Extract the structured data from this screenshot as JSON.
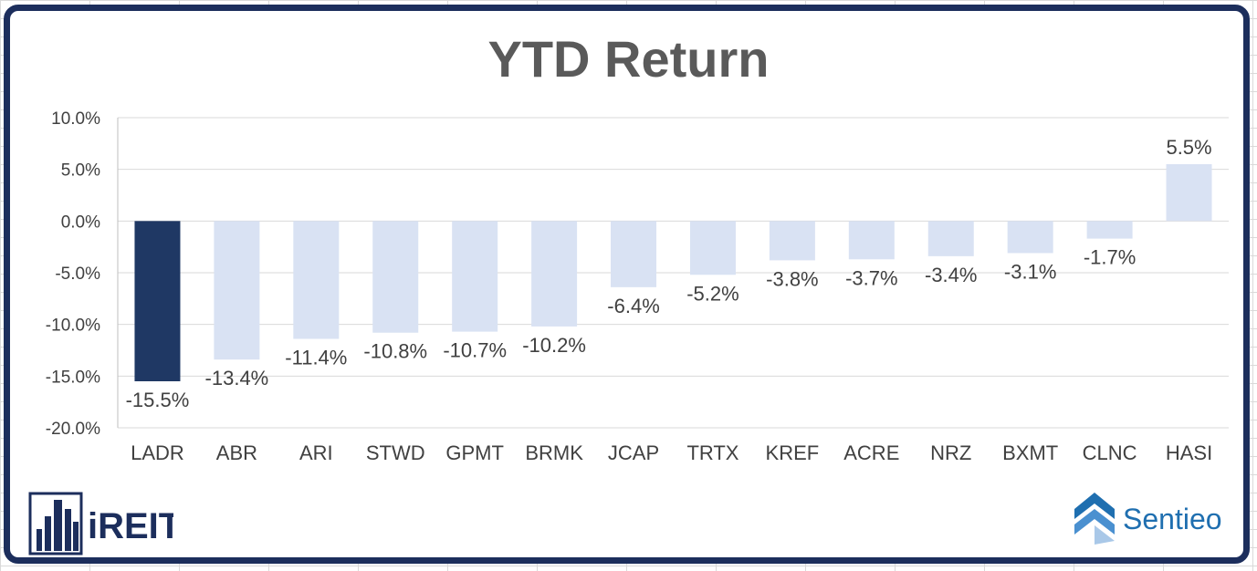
{
  "chart_data": {
    "type": "bar",
    "title": "YTD Return",
    "xlabel": "",
    "ylabel": "",
    "categories": [
      "LADR",
      "ABR",
      "ARI",
      "STWD",
      "GPMT",
      "BRMK",
      "JCAP",
      "TRTX",
      "KREF",
      "ACRE",
      "NRZ",
      "BXMT",
      "CLNC",
      "HASI"
    ],
    "values": [
      -15.5,
      -13.4,
      -11.4,
      -10.8,
      -10.7,
      -10.2,
      -6.4,
      -5.2,
      -3.8,
      -3.7,
      -3.4,
      -3.1,
      -1.7,
      5.5
    ],
    "data_labels": [
      "-15.5%",
      "-13.4%",
      "-11.4%",
      "-10.8%",
      "-10.7%",
      "-10.2%",
      "-6.4%",
      "-5.2%",
      "-3.8%",
      "-3.7%",
      "-3.4%",
      "-3.1%",
      "-1.7%",
      "5.5%"
    ],
    "ylim": [
      -20,
      10
    ],
    "yticks": [
      10,
      5,
      0,
      -5,
      -10,
      -15,
      -20
    ],
    "ytick_labels": [
      "10.0%",
      "5.0%",
      "0.0%",
      "-5.0%",
      "-10.0%",
      "-15.0%",
      "-20.0%"
    ],
    "grid": true,
    "highlight_index": 0,
    "colors": {
      "highlight": "#1f3864",
      "default": "#d9e2f3"
    }
  },
  "logos": {
    "left": {
      "text": "iREIT",
      "icon": "building-icon"
    },
    "right": {
      "text": "Sentieo",
      "icon": "sentieo-chevron-icon"
    }
  }
}
